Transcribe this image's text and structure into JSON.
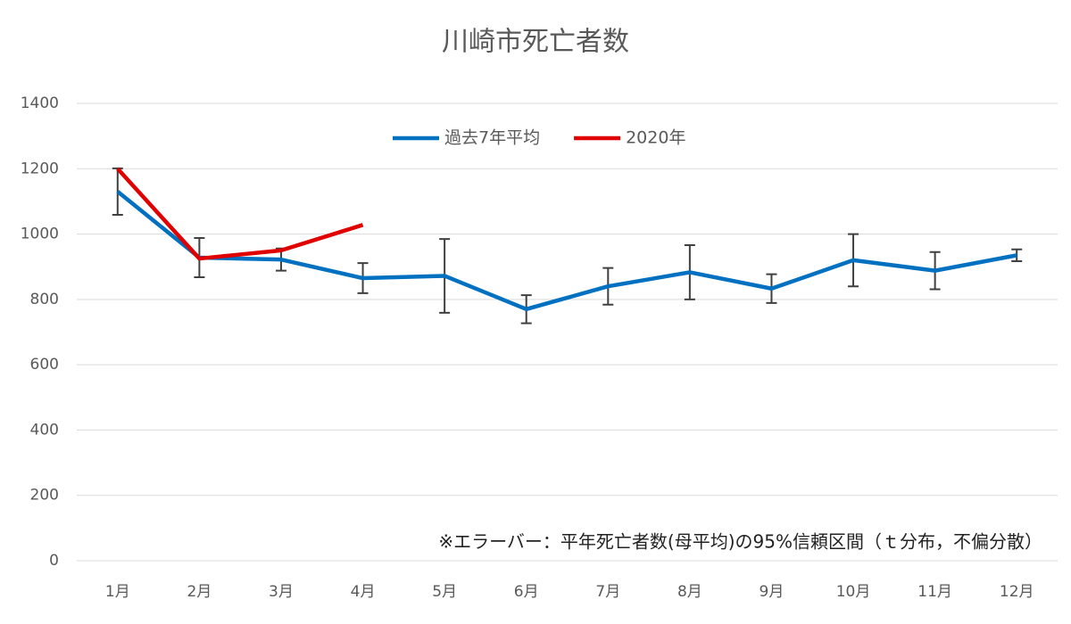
{
  "chart_data": {
    "type": "line",
    "title": "川崎市死亡者数",
    "categories": [
      "1月",
      "2月",
      "3月",
      "4月",
      "5月",
      "6月",
      "7月",
      "8月",
      "9月",
      "10月",
      "11月",
      "12月"
    ],
    "series": [
      {
        "name": "過去7年平均",
        "color": "#0070c0",
        "values": [
          1130,
          928,
          922,
          865,
          872,
          770,
          840,
          883,
          833,
          920,
          888,
          935
        ],
        "errors": [
          71,
          60,
          34,
          46,
          113,
          43,
          56,
          83,
          44,
          80,
          57,
          18
        ]
      },
      {
        "name": "2020年",
        "color": "#e00000",
        "values": [
          1200,
          925,
          950,
          1028,
          null,
          null,
          null,
          null,
          null,
          null,
          null,
          null
        ]
      }
    ],
    "ylim": [
      0,
      1400
    ],
    "yticks": [
      0,
      200,
      400,
      600,
      800,
      1000,
      1200,
      1400
    ],
    "grid": true,
    "legend": "top",
    "annotation": "※エラーバー：平年死亡者数(母平均)の95%信頼区間（ｔ分布，不偏分散）"
  }
}
